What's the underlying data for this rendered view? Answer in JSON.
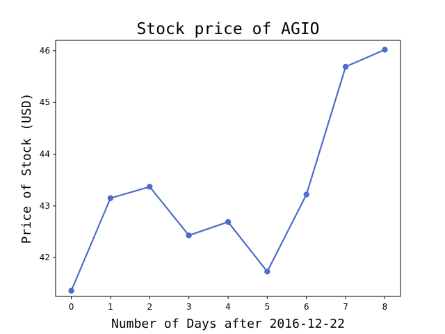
{
  "chart_data": {
    "type": "line",
    "title": "Stock price of AGIO",
    "xlabel": "Number of Days after 2016-12-22",
    "ylabel": "Price of Stock (USD)",
    "x": [
      0,
      1,
      2,
      3,
      4,
      5,
      6,
      7,
      8
    ],
    "series": [
      {
        "values": [
          41.36,
          43.15,
          43.37,
          42.43,
          42.69,
          41.73,
          43.22,
          45.69,
          46.02
        ],
        "color": "#4c6bcc"
      }
    ],
    "xlim": [
      -0.4,
      8.4
    ],
    "ylim": [
      41.25,
      46.2
    ],
    "xticks": [
      "0",
      "1",
      "2",
      "3",
      "4",
      "5",
      "6",
      "7",
      "8"
    ],
    "yticks": [
      "42",
      "43",
      "44",
      "45",
      "46"
    ],
    "grid": false,
    "legend": "none"
  }
}
